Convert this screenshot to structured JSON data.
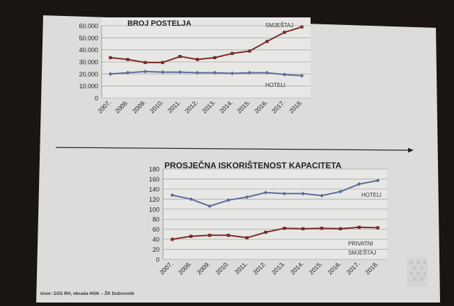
{
  "slide": {
    "source_note": "Izvor: DZS RH, obrada HGK – ŽK Dubrovnik"
  },
  "chart_data": [
    {
      "type": "line",
      "title": "BROJ POSTELJA",
      "categories": [
        "2007.",
        "2008.",
        "2009.",
        "2010.",
        "2011.",
        "2012.",
        "2013.",
        "2014.",
        "2015.",
        "2016.",
        "2017.",
        "2018."
      ],
      "y_ticks": [
        "0",
        "10.000",
        "20.000",
        "30.000",
        "40.000",
        "50.000",
        "60.000"
      ],
      "ylim": [
        0,
        60000
      ],
      "grid": true,
      "series": [
        {
          "name": "SMJEŠTAJ",
          "color": "#7a2a24",
          "values": [
            33500,
            32000,
            29500,
            29500,
            34500,
            32000,
            33500,
            37000,
            39000,
            47000,
            54500,
            59000
          ]
        },
        {
          "name": "HOTELI",
          "color": "#5a6a9a",
          "values": [
            20000,
            21000,
            22000,
            21500,
            21500,
            21000,
            21000,
            20500,
            21000,
            21000,
            19500,
            18500
          ]
        }
      ]
    },
    {
      "type": "line",
      "title": "PROSJEČNA ISKORIŠTENOST KAPACITETA",
      "categories": [
        "2007.",
        "2008.",
        "2009.",
        "2010.",
        "2011.",
        "2012.",
        "2013.",
        "2014.",
        "2015.",
        "2016.",
        "2017.",
        "2018."
      ],
      "y_ticks": [
        "0",
        "20",
        "40",
        "60",
        "80",
        "100",
        "120",
        "140",
        "160",
        "180"
      ],
      "ylim": [
        0,
        180
      ],
      "grid": true,
      "series": [
        {
          "name": "HOTELI",
          "color": "#5a6a9a",
          "values": [
            128,
            120,
            106,
            118,
            124,
            133,
            131,
            131,
            127,
            135,
            150,
            157
          ]
        },
        {
          "name": "PRIVATNI SMJEŠTAJ",
          "name_lines": [
            "PRIVATNI",
            "SMJEŠTAJ"
          ],
          "color": "#7a2a24",
          "values": [
            40,
            46,
            48,
            48,
            43,
            54,
            62,
            61,
            62,
            61,
            64,
            63
          ]
        }
      ]
    }
  ]
}
